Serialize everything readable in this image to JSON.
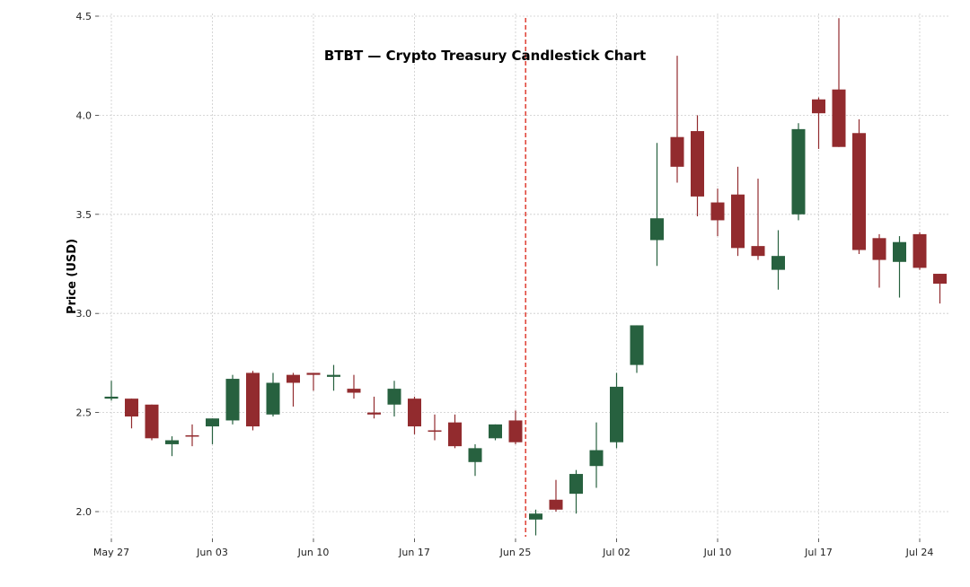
{
  "chart_data": {
    "type": "candlestick",
    "title": "BTBT — Crypto Treasury Candlestick Chart",
    "xlabel": "",
    "ylabel": "Price (USD)",
    "ylim": [
      1.864,
      4.51
    ],
    "yticks": [
      2.0,
      2.5,
      3.0,
      3.5,
      4.0,
      4.5
    ],
    "ytick_labels": [
      "2.0",
      "2.5",
      "3.0",
      "3.5",
      "4.0",
      "4.5"
    ],
    "xtick_labels": [
      {
        "index": 0,
        "label": "May 27"
      },
      {
        "index": 5,
        "label": "Jun 03"
      },
      {
        "index": 10,
        "label": "Jun 10"
      },
      {
        "index": 15,
        "label": "Jun 17"
      },
      {
        "index": 20,
        "label": "Jun 25"
      },
      {
        "index": 25,
        "label": "Jul 02"
      },
      {
        "index": 30,
        "label": "Jul 10"
      },
      {
        "index": 35,
        "label": "Jul 17"
      },
      {
        "index": 40,
        "label": "Jul 24"
      }
    ],
    "grid": true,
    "event_line_index": 20.5,
    "colors": {
      "up": "#27613f",
      "down": "#922b2e",
      "event": "#e0483c",
      "grid": "#cccccc"
    },
    "candles": [
      {
        "o": 2.57,
        "h": 2.66,
        "l": 2.56,
        "c": 2.58
      },
      {
        "o": 2.57,
        "h": 2.57,
        "l": 2.42,
        "c": 2.48
      },
      {
        "o": 2.54,
        "h": 2.54,
        "l": 2.36,
        "c": 2.37
      },
      {
        "o": 2.34,
        "h": 2.38,
        "l": 2.28,
        "c": 2.36
      },
      {
        "o": 2.385,
        "h": 2.44,
        "l": 2.33,
        "c": 2.38
      },
      {
        "o": 2.43,
        "h": 2.47,
        "l": 2.34,
        "c": 2.47
      },
      {
        "o": 2.46,
        "h": 2.69,
        "l": 2.44,
        "c": 2.67
      },
      {
        "o": 2.7,
        "h": 2.71,
        "l": 2.41,
        "c": 2.43
      },
      {
        "o": 2.49,
        "h": 2.7,
        "l": 2.48,
        "c": 2.65
      },
      {
        "o": 2.69,
        "h": 2.7,
        "l": 2.53,
        "c": 2.65
      },
      {
        "o": 2.7,
        "h": 2.7,
        "l": 2.61,
        "c": 2.69
      },
      {
        "o": 2.68,
        "h": 2.74,
        "l": 2.61,
        "c": 2.69
      },
      {
        "o": 2.62,
        "h": 2.69,
        "l": 2.57,
        "c": 2.6
      },
      {
        "o": 2.5,
        "h": 2.58,
        "l": 2.47,
        "c": 2.49
      },
      {
        "o": 2.54,
        "h": 2.66,
        "l": 2.48,
        "c": 2.62
      },
      {
        "o": 2.57,
        "h": 2.58,
        "l": 2.39,
        "c": 2.43
      },
      {
        "o": 2.41,
        "h": 2.49,
        "l": 2.36,
        "c": 2.405
      },
      {
        "o": 2.45,
        "h": 2.49,
        "l": 2.32,
        "c": 2.33
      },
      {
        "o": 2.25,
        "h": 2.34,
        "l": 2.18,
        "c": 2.32
      },
      {
        "o": 2.37,
        "h": 2.44,
        "l": 2.36,
        "c": 2.44
      },
      {
        "o": 2.46,
        "h": 2.51,
        "l": 2.34,
        "c": 2.35
      },
      {
        "o": 1.96,
        "h": 2.01,
        "l": 1.88,
        "c": 1.99
      },
      {
        "o": 2.06,
        "h": 2.16,
        "l": 2.0,
        "c": 2.01
      },
      {
        "o": 2.09,
        "h": 2.21,
        "l": 1.99,
        "c": 2.19
      },
      {
        "o": 2.23,
        "h": 2.45,
        "l": 2.12,
        "c": 2.31
      },
      {
        "o": 2.35,
        "h": 2.7,
        "l": 2.32,
        "c": 2.63
      },
      {
        "o": 2.74,
        "h": 2.94,
        "l": 2.7,
        "c": 2.94
      },
      {
        "o": 3.37,
        "h": 3.86,
        "l": 3.24,
        "c": 3.48
      },
      {
        "o": 3.89,
        "h": 4.3,
        "l": 3.66,
        "c": 3.74
      },
      {
        "o": 3.92,
        "h": 4.0,
        "l": 3.49,
        "c": 3.59
      },
      {
        "o": 3.56,
        "h": 3.63,
        "l": 3.39,
        "c": 3.47
      },
      {
        "o": 3.6,
        "h": 3.74,
        "l": 3.29,
        "c": 3.33
      },
      {
        "o": 3.34,
        "h": 3.68,
        "l": 3.27,
        "c": 3.29
      },
      {
        "o": 3.22,
        "h": 3.42,
        "l": 3.12,
        "c": 3.29
      },
      {
        "o": 3.5,
        "h": 3.96,
        "l": 3.47,
        "c": 3.93
      },
      {
        "o": 4.08,
        "h": 4.09,
        "l": 3.83,
        "c": 4.01
      },
      {
        "o": 4.13,
        "h": 4.49,
        "l": 3.84,
        "c": 3.84
      },
      {
        "o": 3.91,
        "h": 3.98,
        "l": 3.3,
        "c": 3.32
      },
      {
        "o": 3.38,
        "h": 3.4,
        "l": 3.13,
        "c": 3.27
      },
      {
        "o": 3.26,
        "h": 3.39,
        "l": 3.08,
        "c": 3.36
      },
      {
        "o": 3.4,
        "h": 3.41,
        "l": 3.22,
        "c": 3.23
      },
      {
        "o": 3.2,
        "h": 3.2,
        "l": 3.05,
        "c": 3.15
      }
    ]
  }
}
